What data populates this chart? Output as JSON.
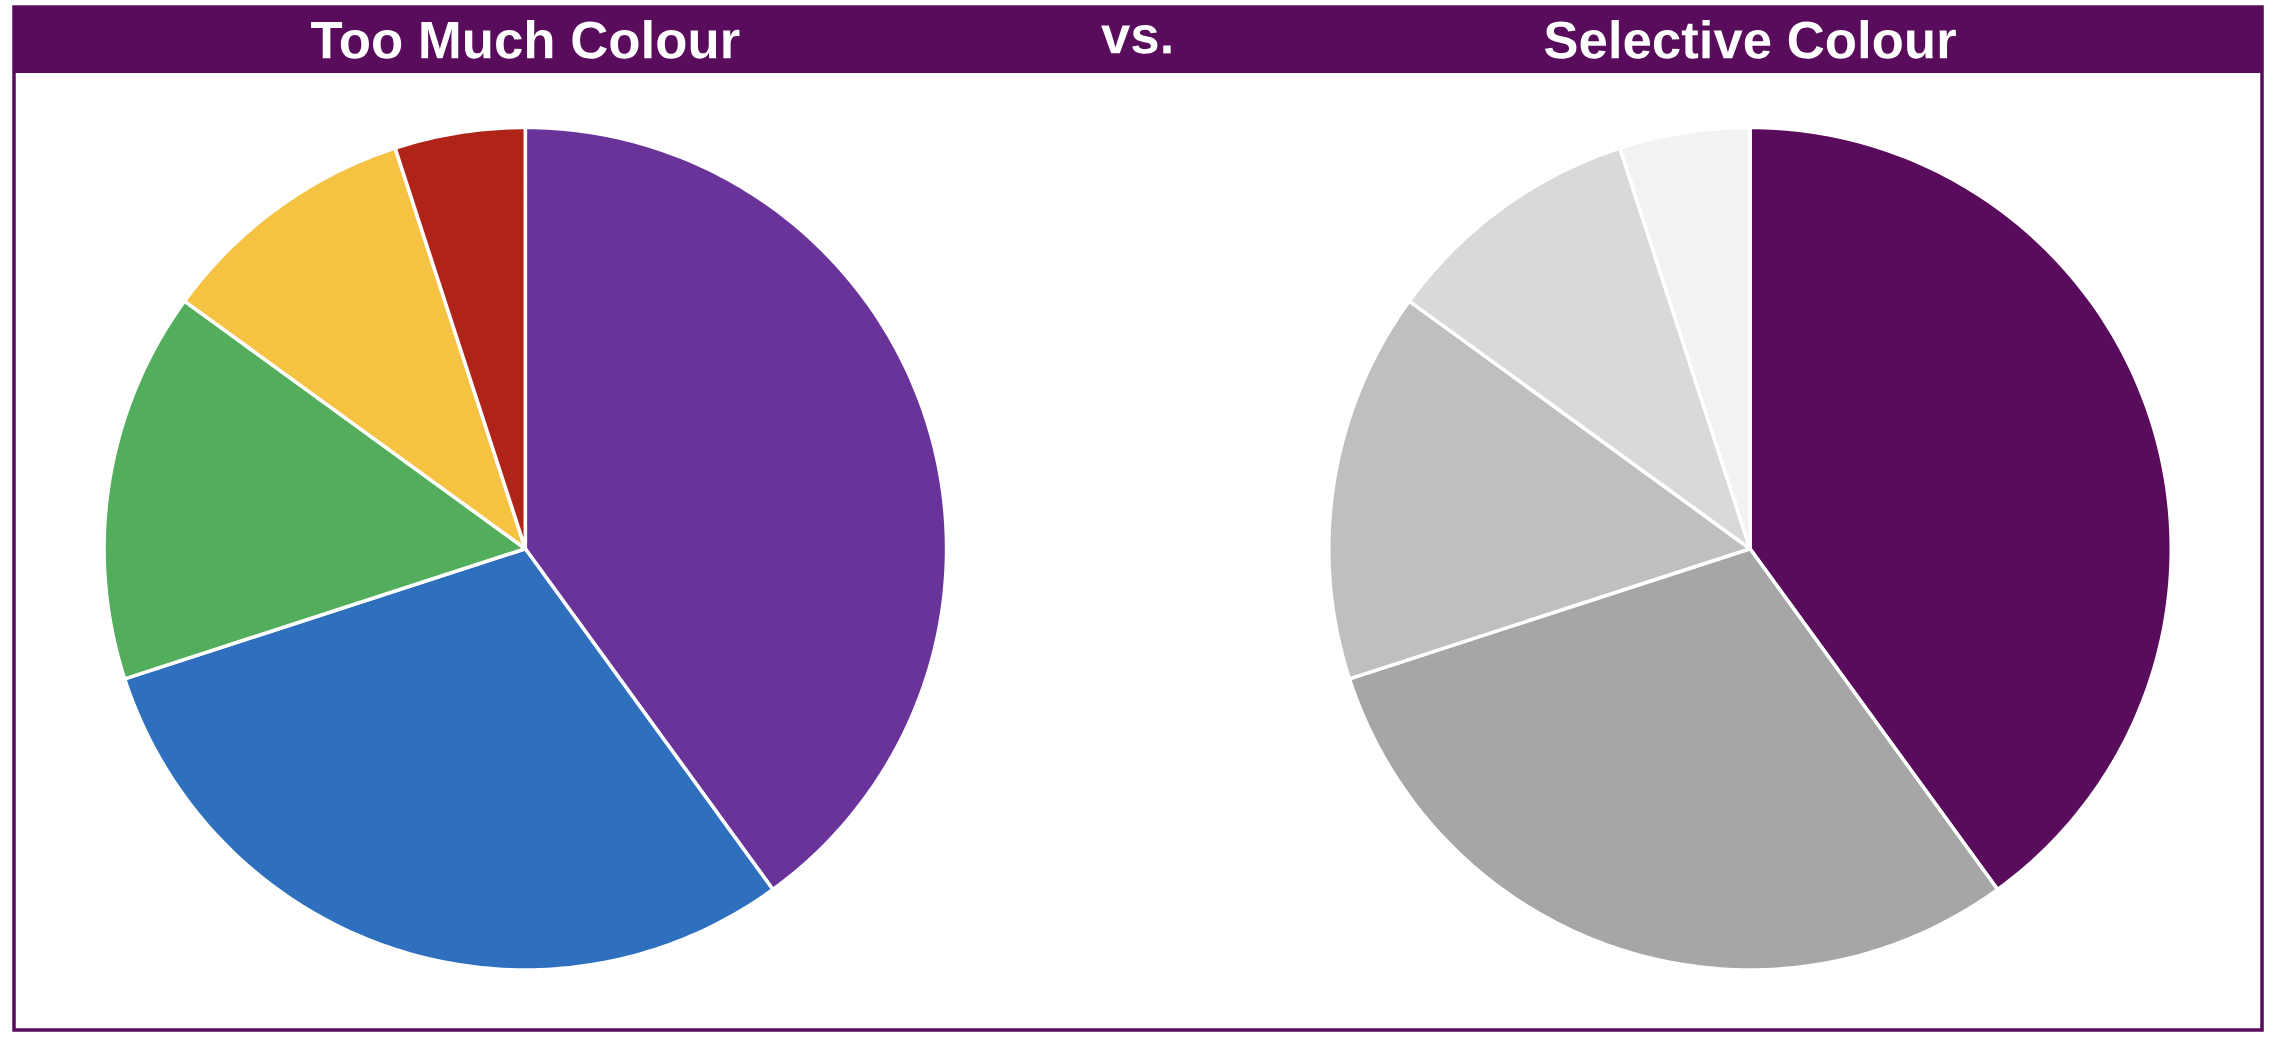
{
  "chart_data": [
    {
      "type": "pie",
      "title": "Too Much Colour",
      "annotations": [
        "vs."
      ],
      "categories": [
        null,
        null,
        null,
        null,
        null
      ],
      "values": [
        40,
        30,
        15,
        10,
        5
      ],
      "colors": [
        "#6a3399",
        "#2e70bd",
        "#52ae5c",
        "#f5c242",
        "#b02318"
      ]
    },
    {
      "type": "pie",
      "title": "Selective Colour",
      "categories": [
        null,
        null,
        null,
        null,
        null
      ],
      "values": [
        40,
        30,
        15,
        10,
        5
      ],
      "colors": [
        "#5a0c5c",
        "#a6a6a6",
        "#bfbfbf",
        "#d9d9d9",
        "#f2f2f2"
      ]
    }
  ]
}
